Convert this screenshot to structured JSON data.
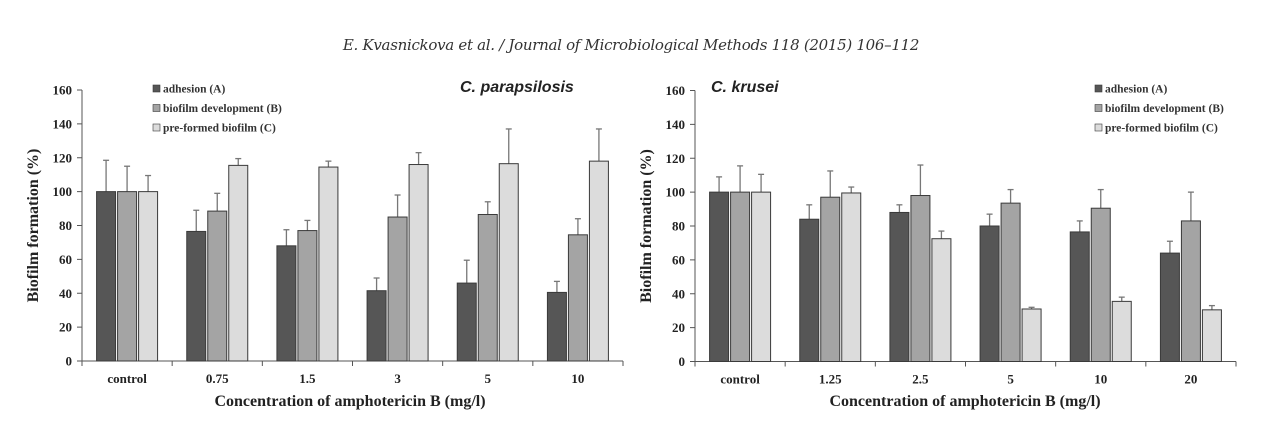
{
  "header": "E. Kvasnickova et al. / Journal of Microbiological Methods 118 (2015) 106–112",
  "colors": {
    "A": "#565656",
    "B": "#a4a4a4",
    "C": "#dcdcdc",
    "outline": "#3a3a3a",
    "error": "#777777"
  },
  "chart_data": [
    {
      "type": "bar",
      "title": "C. parapsilosis",
      "xlabel": "Concentration of amphotericin B (mg/l)",
      "ylabel": "Biofilm formation (%)",
      "ylim": [
        0,
        160
      ],
      "yticks": [
        0,
        20,
        40,
        60,
        80,
        100,
        120,
        140,
        160
      ],
      "legend_position": "top-left",
      "categories": [
        "control",
        "0.75",
        "1.5",
        "3",
        "5",
        "10"
      ],
      "series": [
        {
          "name": "adhesion (A)",
          "key": "A",
          "values": [
            100,
            76.5,
            68,
            41.5,
            46,
            40.5
          ],
          "error_upper": [
            118.5,
            89,
            77.5,
            49,
            59.5,
            47
          ]
        },
        {
          "name": "biofilm development (B)",
          "key": "B",
          "values": [
            100,
            88.5,
            77,
            85,
            86.5,
            74.5
          ],
          "error_upper": [
            115,
            99,
            83,
            98,
            94,
            84
          ]
        },
        {
          "name": "pre-formed biofilm (C)",
          "key": "C",
          "values": [
            100,
            115.5,
            114.5,
            116,
            116.5,
            118
          ],
          "error_upper": [
            109.5,
            119.5,
            118,
            123,
            137,
            137
          ]
        }
      ]
    },
    {
      "type": "bar",
      "title": "C. krusei",
      "xlabel": "Concentration of amphotericin B (mg/l)",
      "ylabel": "Biofilm formation (%)",
      "ylim": [
        0,
        160
      ],
      "yticks": [
        0,
        20,
        40,
        60,
        80,
        100,
        120,
        140,
        160
      ],
      "legend_position": "top-right",
      "categories": [
        "control",
        "1.25",
        "2.5",
        "5",
        "10",
        "20"
      ],
      "series": [
        {
          "name": "adhesion (A)",
          "key": "A",
          "values": [
            100,
            84,
            88,
            80,
            76.5,
            64
          ],
          "error_upper": [
            109,
            92.5,
            92.5,
            87,
            83,
            71
          ]
        },
        {
          "name": "biofilm development (B)",
          "key": "B",
          "values": [
            100,
            97,
            98,
            93.5,
            90.5,
            83
          ],
          "error_upper": [
            115.5,
            112.5,
            116,
            101.5,
            101.5,
            100
          ]
        },
        {
          "name": "pre-formed biofilm (C)",
          "key": "C",
          "values": [
            100,
            99.5,
            72.5,
            31,
            35.5,
            30.5
          ],
          "error_upper": [
            110.5,
            103,
            77,
            32,
            38,
            33
          ]
        }
      ]
    }
  ]
}
